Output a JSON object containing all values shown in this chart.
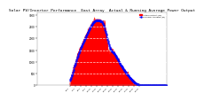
{
  "title": "Solar PV/Inverter Performance  East Array  Actual & Running Average Power Output",
  "title_fontsize": 3.2,
  "bg_color": "#ffffff",
  "plot_bg_color": "#ffffff",
  "grid_color": "#aaaaaa",
  "red_fill_color": "#ff0000",
  "blue_dot_color": "#0000ff",
  "text_color": "#000000",
  "legend_actual_color": "#ff0000",
  "legend_avg_color": "#0000ff",
  "legend_actual": "Actual Output (W)",
  "legend_avg": "Running Average (W)",
  "ytick_labels": [
    "0",
    "500",
    "1000",
    "1500",
    "2000",
    "2500",
    "3000"
  ],
  "ytick_vals": [
    0,
    500,
    1000,
    1500,
    2000,
    2500,
    3000
  ],
  "ymax": 3100,
  "xmin": 0,
  "xmax": 24
}
